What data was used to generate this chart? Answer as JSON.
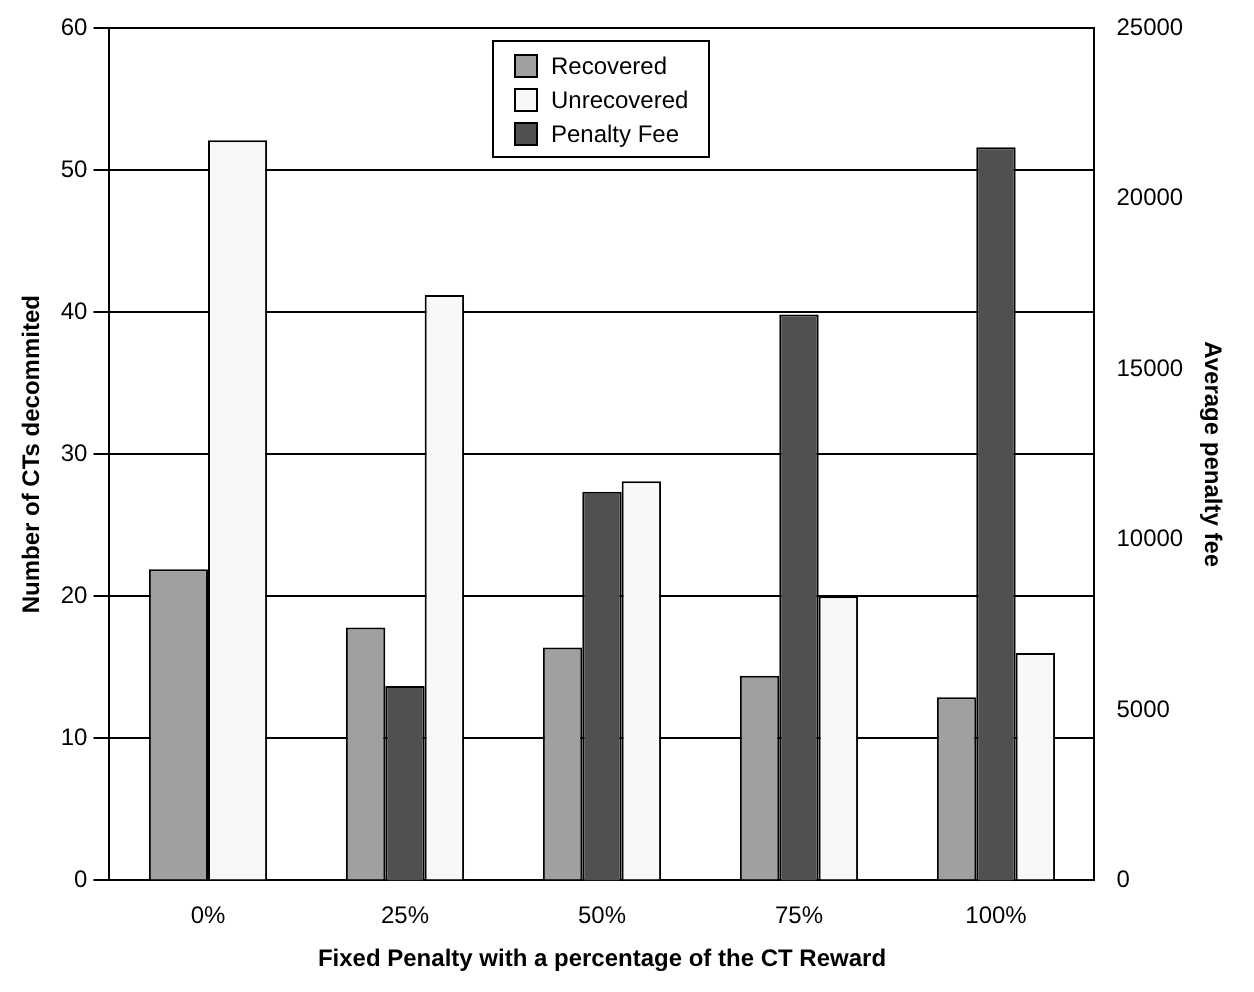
{
  "chart_data": {
    "type": "bar",
    "xlabel": "Fixed Penalty with a percentage of the CT Reward",
    "ylabel": "Number of CTs decommited",
    "y2label": "Average penalty fee",
    "categories": [
      "0%",
      "25%",
      "50%",
      "75%",
      "100%"
    ],
    "series": [
      {
        "name": "Recovered",
        "color": "#a0a0a0",
        "values": [
          21.9,
          17.8,
          16.4,
          14.4,
          12.9
        ]
      },
      {
        "name": "Penalty Fee",
        "color": "#505050",
        "axis": "y2",
        "values": [
          null,
          5700,
          11400,
          16600,
          21500
        ]
      },
      {
        "name": "Unrecovered",
        "color": "#f8f8f8",
        "values": [
          52.1,
          41.2,
          28.1,
          20,
          16
        ]
      }
    ],
    "ylim": [
      0,
      60
    ],
    "yticks": [
      0,
      10,
      20,
      30,
      40,
      50,
      60
    ],
    "y2lim": [
      0,
      25000
    ],
    "y2ticks": [
      0,
      5000,
      10000,
      15000,
      20000,
      25000
    ],
    "grid": "y",
    "legend": "top"
  }
}
